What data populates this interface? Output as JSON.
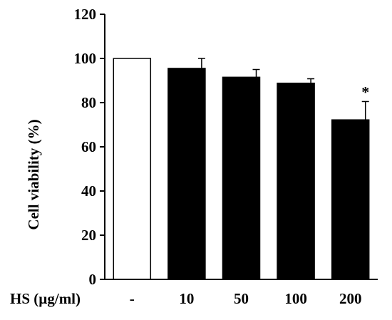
{
  "chart_data": {
    "type": "bar",
    "title": "",
    "xlabel": "HS (µg/ml)",
    "ylabel": "Cell viability (%)",
    "ylim": [
      0,
      120
    ],
    "yticks": [
      0,
      20,
      40,
      60,
      80,
      100,
      120
    ],
    "categories": [
      "-",
      "10",
      "50",
      "100",
      "200"
    ],
    "values": [
      100,
      95.5,
      91.5,
      88.8,
      72.2
    ],
    "errors": [
      0,
      4.5,
      3.5,
      2.0,
      8.3
    ],
    "bar_fills": [
      "#ffffff",
      "#000000",
      "#000000",
      "#000000",
      "#000000"
    ],
    "annotations": [
      "",
      "",
      "",
      "",
      "*"
    ],
    "grid": false,
    "legend": "none"
  }
}
